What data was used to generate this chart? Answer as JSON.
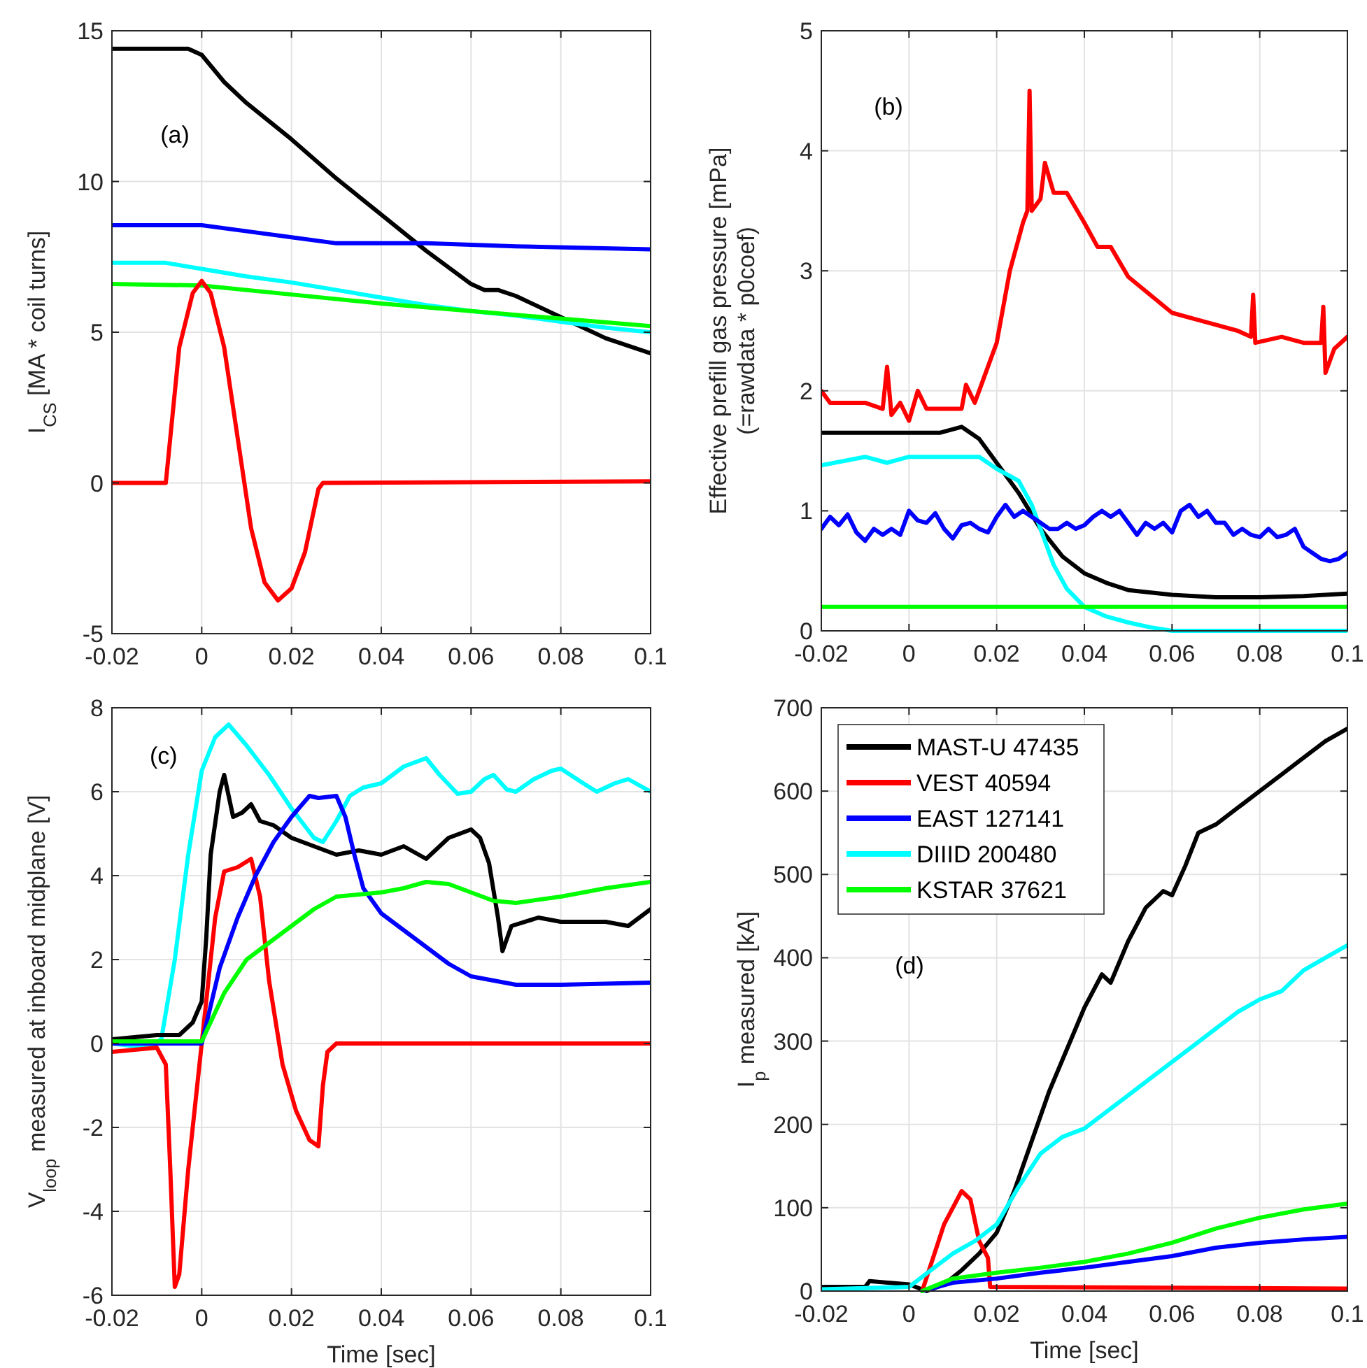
{
  "chart_data": [
    {
      "type": "line",
      "ylabel": "I$_{CS}$ [MA * coil turns]",
      "annotations": [
        "(a)"
      ],
      "xlim": [
        -0.02,
        0.1
      ],
      "xticks": [
        -0.02,
        0,
        0.02,
        0.04,
        0.06,
        0.08,
        0.1
      ],
      "ylim": [
        -5,
        15
      ],
      "yticks": [
        -5,
        0,
        5,
        10,
        15
      ],
      "grid": true,
      "legend": false,
      "series": [
        {
          "color": "#000000",
          "x": [
            -0.02,
            -0.003,
            0,
            0.005,
            0.01,
            0.02,
            0.03,
            0.04,
            0.05,
            0.06,
            0.063,
            0.066,
            0.07,
            0.08,
            0.09,
            0.1
          ],
          "values": [
            14.4,
            14.4,
            14.2,
            13.3,
            12.6,
            11.4,
            10.1,
            8.9,
            7.7,
            6.6,
            6.4,
            6.4,
            6.2,
            5.5,
            4.8,
            4.3
          ]
        },
        {
          "color": "#0000ff",
          "x": [
            -0.02,
            0,
            0.01,
            0.02,
            0.03,
            0.05,
            0.07,
            0.1
          ],
          "values": [
            8.55,
            8.55,
            8.35,
            8.15,
            7.95,
            7.95,
            7.85,
            7.75
          ]
        },
        {
          "color": "#00ffff",
          "x": [
            -0.02,
            -0.008,
            0,
            0.01,
            0.02,
            0.03,
            0.04,
            0.05,
            0.06,
            0.07,
            0.08,
            0.09,
            0.1
          ],
          "values": [
            7.3,
            7.3,
            7.1,
            6.85,
            6.65,
            6.4,
            6.15,
            5.9,
            5.7,
            5.55,
            5.35,
            5.15,
            5.0
          ]
        },
        {
          "color": "#00ff00",
          "x": [
            -0.02,
            0,
            0.02,
            0.04,
            0.06,
            0.08,
            0.1
          ],
          "values": [
            6.6,
            6.55,
            6.25,
            5.95,
            5.7,
            5.45,
            5.2
          ]
        },
        {
          "color": "#ff0000",
          "x": [
            -0.02,
            -0.008,
            -0.007,
            -0.005,
            -0.002,
            0,
            0.002,
            0.005,
            0.008,
            0.011,
            0.014,
            0.017,
            0.02,
            0.023,
            0.026,
            0.027,
            0.1
          ],
          "values": [
            0,
            0,
            1.5,
            4.5,
            6.3,
            6.7,
            6.3,
            4.5,
            1.5,
            -1.5,
            -3.3,
            -3.9,
            -3.5,
            -2.3,
            -0.2,
            0,
            0.05
          ]
        }
      ]
    },
    {
      "type": "line",
      "ylabel": "Effective prefill gas pressure [mPa]\n(=rawdata * p0coef)",
      "annotations": [
        "(b)"
      ],
      "xlim": [
        -0.02,
        0.1
      ],
      "xticks": [
        -0.02,
        0,
        0.02,
        0.04,
        0.06,
        0.08,
        0.1
      ],
      "ylim": [
        0,
        5
      ],
      "yticks": [
        0,
        1,
        2,
        3,
        4,
        5
      ],
      "grid": true,
      "legend": false,
      "series": [
        {
          "color": "#ff0000",
          "x": [
            -0.02,
            -0.018,
            -0.01,
            -0.006,
            -0.005,
            -0.004,
            -0.002,
            0,
            0.002,
            0.004,
            0.01,
            0.012,
            0.013,
            0.015,
            0.017,
            0.02,
            0.023,
            0.026,
            0.027,
            0.0275,
            0.028,
            0.03,
            0.031,
            0.033,
            0.036,
            0.04,
            0.043,
            0.046,
            0.05,
            0.055,
            0.06,
            0.065,
            0.07,
            0.075,
            0.078,
            0.0785,
            0.079,
            0.085,
            0.09,
            0.094,
            0.0945,
            0.095,
            0.097,
            0.1
          ],
          "values": [
            2.0,
            1.9,
            1.9,
            1.85,
            2.2,
            1.8,
            1.9,
            1.75,
            2.0,
            1.85,
            1.85,
            1.85,
            2.05,
            1.9,
            2.1,
            2.4,
            3.0,
            3.4,
            3.5,
            4.5,
            3.5,
            3.6,
            3.9,
            3.65,
            3.65,
            3.4,
            3.2,
            3.2,
            2.95,
            2.8,
            2.65,
            2.6,
            2.55,
            2.5,
            2.45,
            2.8,
            2.4,
            2.45,
            2.4,
            2.4,
            2.7,
            2.15,
            2.35,
            2.45
          ]
        },
        {
          "color": "#000000",
          "x": [
            -0.02,
            0.007,
            0.012,
            0.016,
            0.02,
            0.025,
            0.03,
            0.035,
            0.04,
            0.045,
            0.05,
            0.06,
            0.07,
            0.08,
            0.09,
            0.1
          ],
          "values": [
            1.65,
            1.65,
            1.7,
            1.6,
            1.4,
            1.15,
            0.85,
            0.62,
            0.48,
            0.4,
            0.34,
            0.3,
            0.28,
            0.28,
            0.29,
            0.31
          ]
        },
        {
          "color": "#00ffff",
          "x": [
            -0.02,
            -0.01,
            -0.005,
            0,
            0.016,
            0.02,
            0.025,
            0.028,
            0.03,
            0.033,
            0.036,
            0.04,
            0.045,
            0.05,
            0.055,
            0.06,
            0.1
          ],
          "values": [
            1.38,
            1.45,
            1.4,
            1.45,
            1.45,
            1.35,
            1.25,
            1.05,
            0.85,
            0.55,
            0.35,
            0.2,
            0.12,
            0.07,
            0.03,
            0.0,
            0.0
          ]
        },
        {
          "color": "#0000ff",
          "x": [
            -0.02,
            -0.018,
            -0.016,
            -0.014,
            -0.012,
            -0.01,
            -0.008,
            -0.006,
            -0.004,
            -0.002,
            0,
            0.002,
            0.004,
            0.006,
            0.008,
            0.01,
            0.012,
            0.014,
            0.016,
            0.018,
            0.02,
            0.022,
            0.024,
            0.026,
            0.028,
            0.03,
            0.032,
            0.034,
            0.036,
            0.038,
            0.04,
            0.042,
            0.044,
            0.046,
            0.048,
            0.05,
            0.052,
            0.054,
            0.056,
            0.058,
            0.06,
            0.062,
            0.064,
            0.066,
            0.068,
            0.07,
            0.072,
            0.074,
            0.076,
            0.078,
            0.08,
            0.082,
            0.084,
            0.086,
            0.088,
            0.09,
            0.092,
            0.094,
            0.096,
            0.098,
            0.1
          ],
          "values": [
            0.85,
            0.95,
            0.88,
            0.97,
            0.82,
            0.75,
            0.85,
            0.8,
            0.85,
            0.8,
            1.0,
            0.92,
            0.9,
            0.98,
            0.85,
            0.77,
            0.88,
            0.9,
            0.85,
            0.82,
            0.95,
            1.05,
            0.95,
            1.0,
            0.95,
            0.9,
            0.85,
            0.85,
            0.9,
            0.85,
            0.88,
            0.95,
            1.0,
            0.95,
            1.0,
            0.9,
            0.8,
            0.9,
            0.85,
            0.9,
            0.82,
            1.0,
            1.05,
            0.95,
            1.0,
            0.9,
            0.9,
            0.8,
            0.85,
            0.8,
            0.78,
            0.85,
            0.78,
            0.8,
            0.85,
            0.7,
            0.65,
            0.6,
            0.58,
            0.6,
            0.65
          ]
        },
        {
          "color": "#00ff00",
          "x": [
            -0.02,
            0.1
          ],
          "values": [
            0.2,
            0.2
          ]
        }
      ]
    },
    {
      "type": "line",
      "xlabel": "Time [sec]",
      "ylabel": "V$_{loop}$ measured at inboard midplane [V]",
      "annotations": [
        "(c)"
      ],
      "xlim": [
        -0.02,
        0.1
      ],
      "xticks": [
        -0.02,
        0,
        0.02,
        0.04,
        0.06,
        0.08,
        0.1
      ],
      "ylim": [
        -6,
        8
      ],
      "yticks": [
        -6,
        -4,
        -2,
        0,
        2,
        4,
        6,
        8
      ],
      "grid": true,
      "legend": false,
      "series": [
        {
          "color": "#00ffff",
          "x": [
            -0.02,
            -0.012,
            -0.009,
            -0.006,
            -0.003,
            0,
            0.003,
            0.006,
            0.01,
            0.015,
            0.02,
            0.025,
            0.027,
            0.03,
            0.033,
            0.036,
            0.04,
            0.045,
            0.05,
            0.053,
            0.057,
            0.06,
            0.063,
            0.065,
            0.068,
            0.07,
            0.074,
            0.078,
            0.08,
            0.085,
            0.088,
            0.092,
            0.095,
            0.1
          ],
          "values": [
            0,
            -0.1,
            0.1,
            2,
            4.5,
            6.5,
            7.3,
            7.6,
            7.1,
            6.4,
            5.6,
            4.9,
            4.8,
            5.3,
            5.9,
            6.1,
            6.2,
            6.6,
            6.8,
            6.4,
            5.95,
            6.0,
            6.3,
            6.4,
            6.05,
            6.0,
            6.3,
            6.5,
            6.55,
            6.2,
            6.0,
            6.2,
            6.3,
            6.0
          ]
        },
        {
          "color": "#000000",
          "x": [
            -0.02,
            -0.01,
            -0.005,
            -0.002,
            0,
            0.001,
            0.002,
            0.004,
            0.005,
            0.007,
            0.009,
            0.011,
            0.013,
            0.016,
            0.02,
            0.025,
            0.03,
            0.035,
            0.04,
            0.045,
            0.05,
            0.055,
            0.06,
            0.062,
            0.064,
            0.066,
            0.067,
            0.069,
            0.075,
            0.08,
            0.09,
            0.095,
            0.1
          ],
          "values": [
            0.1,
            0.2,
            0.2,
            0.5,
            1.0,
            2.5,
            4.5,
            6.0,
            6.4,
            5.4,
            5.5,
            5.7,
            5.3,
            5.2,
            4.9,
            4.7,
            4.5,
            4.6,
            4.5,
            4.7,
            4.4,
            4.9,
            5.1,
            4.9,
            4.3,
            3.0,
            2.2,
            2.8,
            3.0,
            2.9,
            2.9,
            2.8,
            3.2
          ]
        },
        {
          "color": "#ff0000",
          "x": [
            -0.02,
            -0.01,
            -0.008,
            -0.007,
            -0.006,
            -0.005,
            -0.003,
            0,
            0.003,
            0.005,
            0.008,
            0.011,
            0.013,
            0.015,
            0.018,
            0.021,
            0.024,
            0.026,
            0.027,
            0.028,
            0.03,
            0.05,
            0.07,
            0.1
          ],
          "values": [
            -0.2,
            -0.1,
            -0.5,
            -3,
            -5.8,
            -5.5,
            -3,
            0,
            3,
            4.1,
            4.2,
            4.4,
            3.5,
            1.5,
            -0.5,
            -1.6,
            -2.3,
            -2.45,
            -1,
            -0.2,
            0,
            0,
            0,
            0
          ]
        },
        {
          "color": "#0000ff",
          "x": [
            -0.02,
            0,
            0.004,
            0.008,
            0.012,
            0.016,
            0.02,
            0.024,
            0.026,
            0.03,
            0.032,
            0.034,
            0.036,
            0.04,
            0.045,
            0.05,
            0.055,
            0.06,
            0.07,
            0.08,
            0.1
          ],
          "values": [
            0,
            0,
            1.8,
            3,
            4,
            4.8,
            5.4,
            5.9,
            5.85,
            5.9,
            5.4,
            4.5,
            3.7,
            3.1,
            2.7,
            2.3,
            1.9,
            1.6,
            1.4,
            1.4,
            1.45
          ]
        },
        {
          "color": "#00ff00",
          "x": [
            -0.02,
            0,
            0.005,
            0.01,
            0.015,
            0.02,
            0.025,
            0.03,
            0.035,
            0.04,
            0.045,
            0.05,
            0.055,
            0.06,
            0.065,
            0.07,
            0.08,
            0.09,
            0.1
          ],
          "values": [
            0.05,
            0.05,
            1.2,
            2.0,
            2.4,
            2.8,
            3.2,
            3.5,
            3.55,
            3.6,
            3.7,
            3.85,
            3.8,
            3.6,
            3.4,
            3.35,
            3.5,
            3.7,
            3.85
          ]
        }
      ]
    },
    {
      "type": "line",
      "xlabel": "Time [sec]",
      "ylabel": "I$_{p}$ measured [kA]",
      "annotations": [
        "(d)"
      ],
      "xlim": [
        -0.02,
        0.1
      ],
      "xticks": [
        -0.02,
        0,
        0.02,
        0.04,
        0.06,
        0.08,
        0.1
      ],
      "ylim": [
        0,
        700
      ],
      "yticks": [
        0,
        100,
        200,
        300,
        400,
        500,
        600,
        700
      ],
      "grid": true,
      "legend": "top left",
      "series": [
        {
          "name": "MAST-U 47435",
          "color": "#000000",
          "x": [
            -0.02,
            -0.01,
            -0.009,
            0,
            0.004,
            0.008,
            0.012,
            0.016,
            0.02,
            0.024,
            0.028,
            0.032,
            0.036,
            0.04,
            0.044,
            0.046,
            0.05,
            0.054,
            0.058,
            0.06,
            0.063,
            0.066,
            0.07,
            0.075,
            0.08,
            0.085,
            0.09,
            0.095,
            0.1
          ],
          "values": [
            5,
            5,
            12,
            8,
            0,
            8,
            25,
            45,
            70,
            120,
            180,
            240,
            290,
            340,
            380,
            370,
            420,
            460,
            480,
            475,
            510,
            550,
            560,
            580,
            600,
            620,
            640,
            660,
            675
          ]
        },
        {
          "name": "VEST 40594",
          "color": "#ff0000",
          "x": [
            0.003,
            0.008,
            0.012,
            0.014,
            0.016,
            0.018,
            0.0185,
            0.1
          ],
          "values": [
            0,
            80,
            120,
            110,
            60,
            40,
            5,
            3
          ]
        },
        {
          "name": "EAST 127141",
          "color": "#0000ff",
          "x": [
            0.003,
            0.01,
            0.02,
            0.03,
            0.04,
            0.05,
            0.06,
            0.07,
            0.08,
            0.09,
            0.1
          ],
          "values": [
            0,
            10,
            15,
            22,
            28,
            35,
            42,
            52,
            58,
            62,
            65
          ]
        },
        {
          "name": "DIIID 200480",
          "color": "#00ffff",
          "x": [
            -0.02,
            0,
            0.005,
            0.01,
            0.015,
            0.02,
            0.025,
            0.03,
            0.035,
            0.04,
            0.045,
            0.05,
            0.055,
            0.06,
            0.065,
            0.07,
            0.075,
            0.08,
            0.085,
            0.09,
            0.095,
            0.1
          ],
          "values": [
            2,
            5,
            25,
            45,
            60,
            80,
            125,
            165,
            185,
            195,
            215,
            235,
            255,
            275,
            295,
            315,
            335,
            350,
            360,
            385,
            400,
            415
          ]
        },
        {
          "name": "KSTAR 37621",
          "color": "#00ff00",
          "x": [
            0.003,
            0.01,
            0.02,
            0.03,
            0.04,
            0.05,
            0.06,
            0.07,
            0.08,
            0.09,
            0.1
          ],
          "values": [
            0,
            15,
            22,
            28,
            35,
            45,
            58,
            75,
            88,
            98,
            105
          ]
        }
      ]
    }
  ]
}
